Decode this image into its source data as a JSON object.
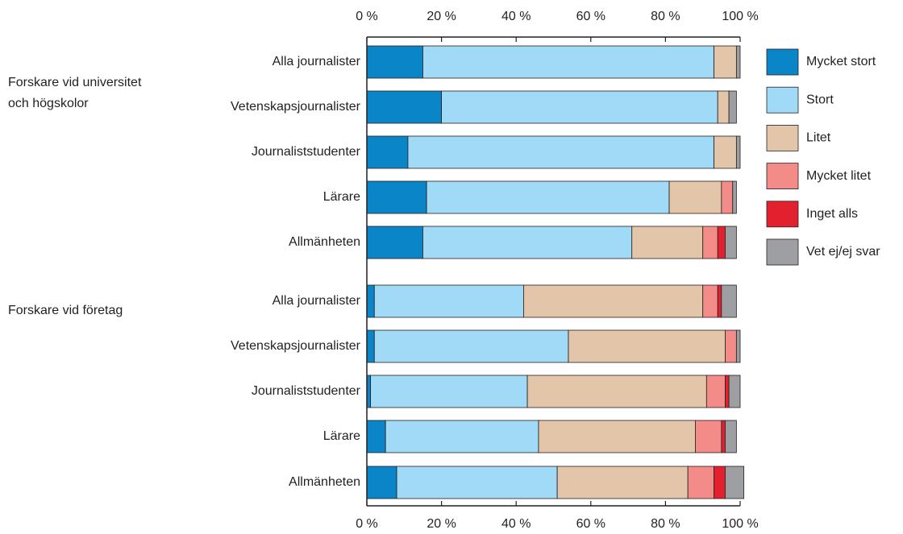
{
  "chart_data": {
    "type": "stacked-barh",
    "groups": [
      {
        "label": [
          "Forskare vid universitet",
          "och högskolor"
        ],
        "start": 0
      },
      {
        "label": [
          "Forskare vid företag"
        ],
        "start": 5
      }
    ],
    "categories": [
      "Alla journalister",
      "Vetenskapsjournalister",
      "Journaliststudenter",
      "Lärare",
      "Allmänheten",
      "Alla journalister",
      "Vetenskapsjournalister",
      "Journaliststudenter",
      "Lärare",
      "Allmänheten"
    ],
    "series": [
      {
        "name": "Mycket stort",
        "color": "#0a85c8",
        "values": [
          15,
          20,
          11,
          16,
          15,
          2,
          2,
          1,
          5,
          8
        ]
      },
      {
        "name": "Stort",
        "color": "#a0daf6",
        "values": [
          78,
          74,
          82,
          65,
          56,
          40,
          52,
          42,
          41,
          43
        ]
      },
      {
        "name": "Litet",
        "color": "#e3c6a9",
        "values": [
          6,
          3,
          6,
          14,
          19,
          48,
          42,
          48,
          42,
          35
        ]
      },
      {
        "name": "Mycket litet",
        "color": "#f38c88",
        "values": [
          0,
          0,
          0,
          3,
          4,
          4,
          3,
          5,
          7,
          7
        ]
      },
      {
        "name": "Inget alls",
        "color": "#e3202d",
        "values": [
          0,
          0,
          0,
          0,
          2,
          1,
          0,
          1,
          1,
          3
        ]
      },
      {
        "name": "Vet ej/ej svar",
        "color": "#9d9fa2",
        "values": [
          1,
          2,
          1,
          1,
          3,
          4,
          1,
          3,
          3,
          5
        ]
      }
    ],
    "xlim": [
      0,
      100
    ],
    "xticks": [
      {
        "value": 0,
        "label": "0 %"
      },
      {
        "value": 20,
        "label": "20 %"
      },
      {
        "value": 40,
        "label": "40 %"
      },
      {
        "value": 60,
        "label": "60 %"
      },
      {
        "value": 80,
        "label": "80 %"
      },
      {
        "value": 100,
        "label": "100 %"
      }
    ],
    "legend": "right"
  }
}
